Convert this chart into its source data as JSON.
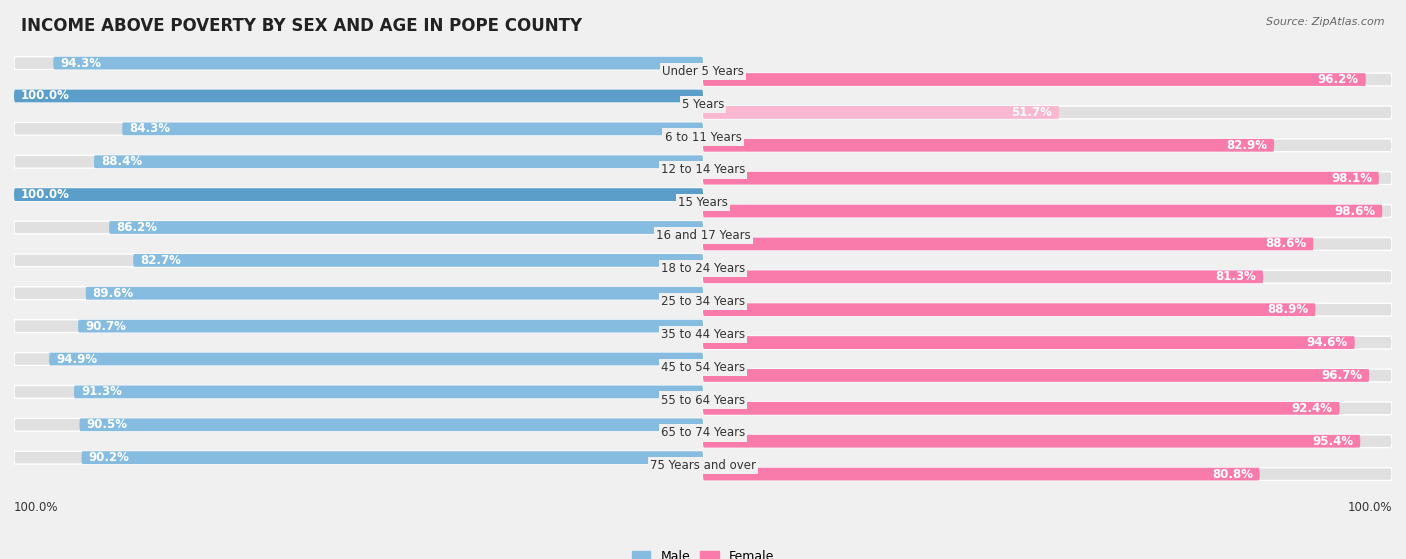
{
  "title": "INCOME ABOVE POVERTY BY SEX AND AGE IN POPE COUNTY",
  "source": "Source: ZipAtlas.com",
  "categories": [
    "Under 5 Years",
    "5 Years",
    "6 to 11 Years",
    "12 to 14 Years",
    "15 Years",
    "16 and 17 Years",
    "18 to 24 Years",
    "25 to 34 Years",
    "35 to 44 Years",
    "45 to 54 Years",
    "55 to 64 Years",
    "65 to 74 Years",
    "75 Years and over"
  ],
  "male_values": [
    94.3,
    100.0,
    84.3,
    88.4,
    100.0,
    86.2,
    82.7,
    89.6,
    90.7,
    94.9,
    91.3,
    90.5,
    90.2
  ],
  "female_values": [
    96.2,
    51.7,
    82.9,
    98.1,
    98.6,
    88.6,
    81.3,
    88.9,
    94.6,
    96.7,
    92.4,
    95.4,
    80.8
  ],
  "male_color": "#85BCE0",
  "male_color_full": "#5A9EC9",
  "female_color": "#F87BAC",
  "female_color_light": "#F9B8D0",
  "bg_color": "#f0f0f0",
  "bar_bg_color": "#e0e0e0",
  "title_fontsize": 12,
  "label_fontsize": 8.5,
  "value_fontsize": 8.5,
  "axis_max": 100.0
}
